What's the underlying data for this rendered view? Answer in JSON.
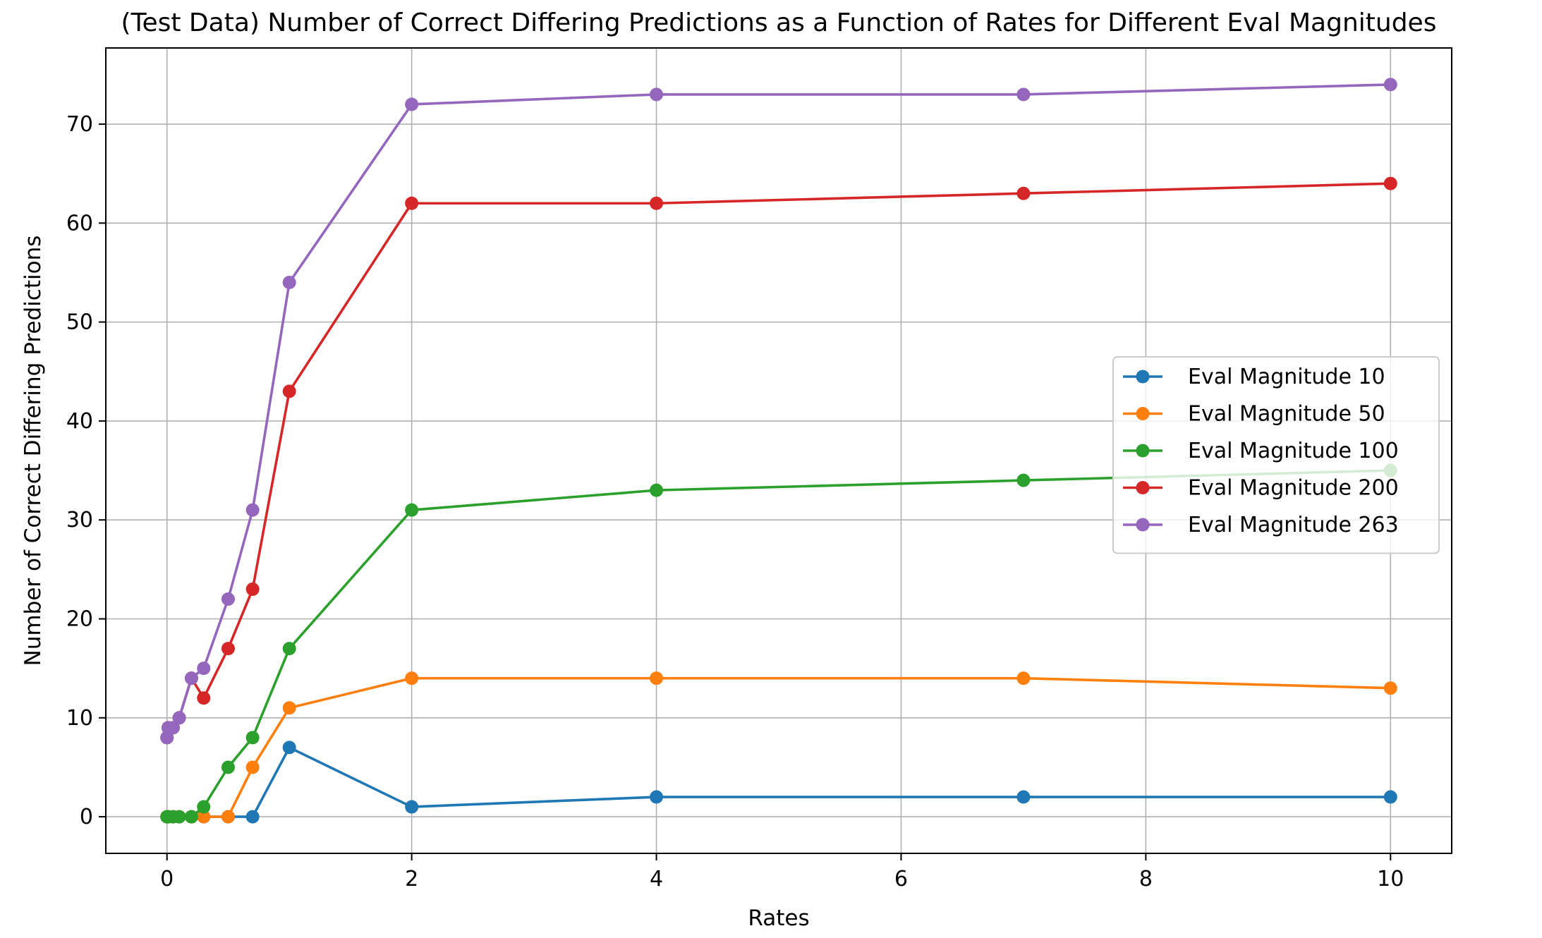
{
  "chart_data": {
    "type": "line",
    "title": "(Test Data) Number of Correct Differing Predictions as a Function of Rates for Different Eval Magnitudes",
    "xlabel": "Rates",
    "ylabel": "Number of Correct Differing Predictions",
    "xlim": [
      -0.5,
      10.5
    ],
    "ylim": [
      -3.7,
      77.7
    ],
    "xticks": [
      0,
      2,
      4,
      6,
      8,
      10
    ],
    "yticks": [
      0,
      10,
      20,
      30,
      40,
      50,
      60,
      70
    ],
    "grid": true,
    "legend_position": "center-right",
    "x": [
      0,
      0.01,
      0.05,
      0.1,
      0.2,
      0.3,
      0.5,
      0.7,
      1,
      2,
      4,
      7,
      10
    ],
    "series": [
      {
        "name": "Eval Magnitude 10",
        "color": "#1f77b4",
        "values": [
          0,
          0,
          0,
          0,
          0,
          0,
          0,
          0,
          7,
          1,
          2,
          2,
          2
        ]
      },
      {
        "name": "Eval Magnitude 50",
        "color": "#ff7f0e",
        "values": [
          0,
          0,
          0,
          0,
          0,
          0,
          0,
          5,
          11,
          14,
          14,
          14,
          13
        ]
      },
      {
        "name": "Eval Magnitude 100",
        "color": "#2ca02c",
        "values": [
          0,
          0,
          0,
          0,
          0,
          1,
          5,
          8,
          17,
          31,
          33,
          34,
          35
        ]
      },
      {
        "name": "Eval Magnitude 200",
        "color": "#d62728",
        "values": [
          8,
          9,
          9,
          10,
          14,
          12,
          17,
          23,
          43,
          62,
          62,
          63,
          64
        ]
      },
      {
        "name": "Eval Magnitude 263",
        "color": "#9467bd",
        "values": [
          8,
          9,
          9,
          10,
          14,
          15,
          22,
          31,
          54,
          72,
          73,
          73,
          74
        ]
      }
    ]
  }
}
